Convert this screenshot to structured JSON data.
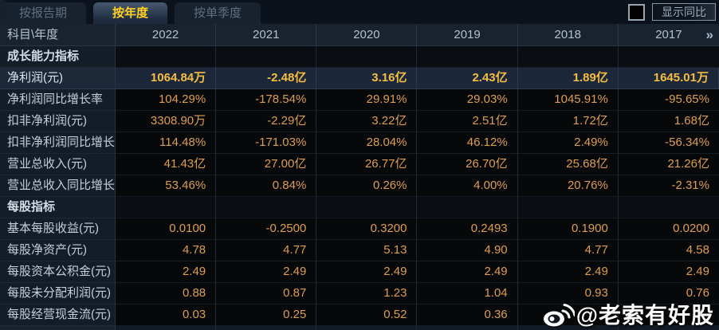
{
  "tabs": [
    {
      "label": "按报告期",
      "active": false
    },
    {
      "label": "按年度",
      "active": true
    },
    {
      "label": "按单季度",
      "active": false
    }
  ],
  "controls": {
    "show_yoy_label": "显示同比",
    "checkbox_checked": false
  },
  "table": {
    "corner_header": "科目\\年度",
    "year_columns": [
      "2022",
      "2021",
      "2020",
      "2019",
      "2018",
      "2017"
    ],
    "more_icon": "»",
    "rows": [
      {
        "type": "section",
        "label": "成长能力指标",
        "values": [
          "",
          "",
          "",
          "",
          "",
          ""
        ]
      },
      {
        "type": "highlight",
        "label": "净利润(元)",
        "values": [
          "1064.84万",
          "-2.48亿",
          "3.16亿",
          "2.43亿",
          "1.89亿",
          "1645.01万"
        ]
      },
      {
        "type": "data",
        "label": "净利润同比增长率",
        "values": [
          "104.29%",
          "-178.54%",
          "29.91%",
          "29.03%",
          "1045.91%",
          "-95.65%"
        ]
      },
      {
        "type": "data",
        "label": "扣非净利润(元)",
        "values": [
          "3308.90万",
          "-2.29亿",
          "3.22亿",
          "2.51亿",
          "1.72亿",
          "1.68亿"
        ]
      },
      {
        "type": "data",
        "label": "扣非净利润同比增长率",
        "values": [
          "114.48%",
          "-171.03%",
          "28.04%",
          "46.12%",
          "2.49%",
          "-56.34%"
        ]
      },
      {
        "type": "data",
        "label": "营业总收入(元)",
        "values": [
          "41.43亿",
          "27.00亿",
          "26.77亿",
          "26.70亿",
          "25.68亿",
          "21.26亿"
        ]
      },
      {
        "type": "data",
        "label": "营业总收入同比增长率",
        "values": [
          "53.46%",
          "0.84%",
          "0.26%",
          "4.00%",
          "20.76%",
          "-2.31%"
        ]
      },
      {
        "type": "section",
        "label": "每股指标",
        "values": [
          "",
          "",
          "",
          "",
          "",
          ""
        ]
      },
      {
        "type": "data",
        "label": "基本每股收益(元)",
        "values": [
          "0.0100",
          "-0.2500",
          "0.3200",
          "0.2493",
          "0.1900",
          "0.0200"
        ]
      },
      {
        "type": "data",
        "label": "每股净资产(元)",
        "values": [
          "4.78",
          "4.77",
          "5.13",
          "4.90",
          "4.77",
          "4.58"
        ]
      },
      {
        "type": "data",
        "label": "每股资本公积金(元)",
        "values": [
          "2.49",
          "2.49",
          "2.49",
          "2.49",
          "2.49",
          "2.49"
        ]
      },
      {
        "type": "data",
        "label": "每股未分配利润(元)",
        "values": [
          "0.88",
          "0.87",
          "1.23",
          "1.04",
          "0.93",
          "0.76"
        ]
      },
      {
        "type": "data",
        "label": "每股经营现金流(元)",
        "values": [
          "0.03",
          "0.25",
          "0.52",
          "0.36",
          "",
          ""
        ]
      }
    ]
  },
  "watermark": {
    "icon": "weibo-icon",
    "text": "@老索有好股"
  },
  "colors": {
    "accent_gold": "#ffd024",
    "value_orange": "#dc9f55",
    "highlight_row_bg": "#1c2839",
    "label_col_bg": "#141c28",
    "header_bg": "#19232f"
  }
}
